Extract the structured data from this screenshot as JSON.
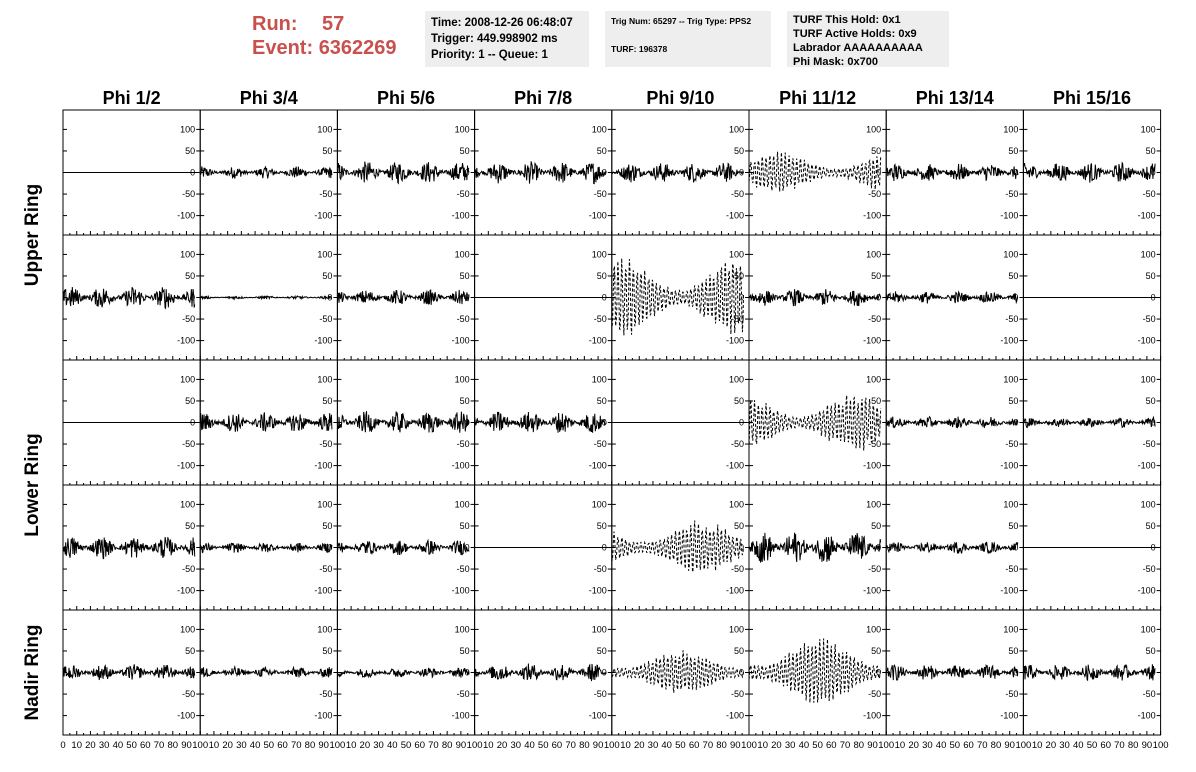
{
  "header": {
    "run_label": "Run:",
    "run_value": "57",
    "event_label": "Event:",
    "event_value": "6362269",
    "time_text": "Time: 2008-12-26 06:48:07",
    "trigger_text": "Trigger: 449.998902 ms",
    "priority_text": "Priority: 1 -- Queue: 1",
    "trig_num_text": "Trig Num: 65297 -- Trig Type: PPS2",
    "turf_text": "TURF: 196378",
    "turf_this_hold": "TURF This Hold: 0x1",
    "turf_active_holds": "TURF Active Holds: 0x9",
    "labrador": "Labrador AAAAAAAAAA",
    "phi_mask": "Phi Mask: 0x700"
  },
  "chart_data": {
    "type": "line",
    "columns": [
      "Phi 1/2",
      "Phi 3/4",
      "Phi 5/6",
      "Phi 7/8",
      "Phi 9/10",
      "Phi 11/12",
      "Phi 13/14",
      "Phi 15/16"
    ],
    "row_labels": [
      {
        "label": "Upper Ring",
        "rows": [
          0,
          1
        ]
      },
      {
        "label": "Lower Ring",
        "rows": [
          2,
          3
        ]
      },
      {
        "label": "Nadir Ring",
        "rows": [
          4
        ]
      }
    ],
    "yticks": [
      100,
      50,
      0,
      -50,
      -100
    ],
    "ylim": [
      -145,
      145
    ],
    "xlim": [
      0,
      100
    ],
    "xticks": [
      0,
      10,
      20,
      30,
      40,
      50,
      60,
      70,
      80,
      90,
      100
    ],
    "trace_xmax": 96,
    "panels": [
      [
        "flat",
        "noise:12",
        "noise:22",
        "noise:22",
        "noise:20",
        "dashed:50",
        "noise:18",
        "noise:20"
      ],
      [
        "noise:22",
        "noise:3",
        "noise:15",
        "flat",
        "dashed:95",
        "noise:17",
        "noise:12",
        "flat"
      ],
      [
        "flat",
        "noise:20",
        "noise:22",
        "noise:22",
        "flat",
        "dashed:70",
        "noise:12",
        "noise:10"
      ],
      [
        "noise:22",
        "noise:10",
        "noise:15",
        "flat",
        "dashed:65",
        "noise:32",
        "noise:12",
        "flat"
      ],
      [
        "noise:16",
        "noise:11",
        "noise:10",
        "noise:18",
        "dashed:55",
        "dashed:85",
        "noise:16",
        "noise:16"
      ]
    ]
  }
}
